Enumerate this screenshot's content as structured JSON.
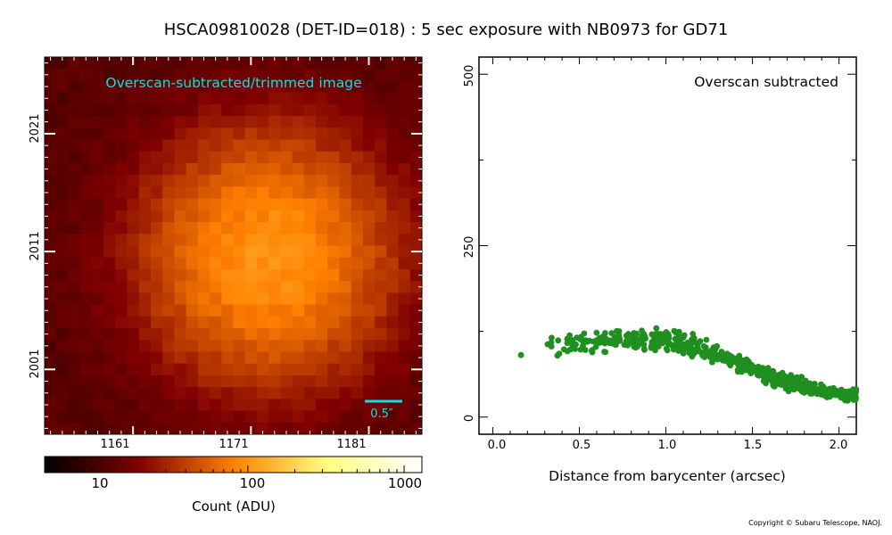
{
  "title": "HSCA09810028 (DET-ID=018) :  5 sec exposure with NB0973 for GD71",
  "copyright": "Copyright © Subaru Telescope, NAOJ.",
  "chart_data": [
    {
      "type": "heatmap",
      "annotation": "Overscan-subtracted/trimmed image",
      "scale_bar_label": "0.5″",
      "x_ticks": [
        "1161",
        "1171",
        "1181"
      ],
      "y_ticks": [
        "2001",
        "2011",
        "2021"
      ],
      "colorbar": {
        "label": "Count (ADU)",
        "scale": "log",
        "range": [
          5,
          1300
        ],
        "ticks": [
          "10",
          "100",
          "1000"
        ]
      },
      "grid": {
        "size": 32,
        "x_range": [
          1153.5,
          1185.5
        ],
        "y_range": [
          1995.5,
          2027.5
        ],
        "peak_x": 1172.5,
        "peak_y": 2010.5,
        "peak_counts": 100,
        "background_counts": 13
      },
      "colors": {
        "accent_text": "#00e5e5",
        "scale_bar": "#00e5e5",
        "tick_marks": "#ffffff"
      }
    },
    {
      "type": "scatter",
      "annotation": "Overscan subtracted",
      "xlabel": "Distance from barycenter (arcsec)",
      "xlim": [
        -0.08,
        2.1
      ],
      "ylim": [
        -25,
        525
      ],
      "x_ticks": [
        "0.0",
        "0.5",
        "1.0",
        "1.5",
        "2.0"
      ],
      "y_ticks": [
        "0",
        "250",
        "500"
      ],
      "point_color": "#1f8f1f",
      "profile": [
        [
          0.1,
          88
        ],
        [
          0.2,
          90
        ],
        [
          0.3,
          96
        ],
        [
          0.4,
          101
        ],
        [
          0.5,
          105
        ],
        [
          0.6,
          110
        ],
        [
          0.7,
          114
        ],
        [
          0.8,
          117
        ],
        [
          0.9,
          116
        ],
        [
          1.0,
          112
        ],
        [
          1.1,
          106
        ],
        [
          1.2,
          100
        ],
        [
          1.3,
          92
        ],
        [
          1.4,
          82
        ],
        [
          1.5,
          70
        ],
        [
          1.6,
          60
        ],
        [
          1.7,
          51
        ],
        [
          1.8,
          44
        ],
        [
          1.9,
          38
        ],
        [
          2.0,
          34
        ],
        [
          2.1,
          31
        ]
      ]
    }
  ]
}
